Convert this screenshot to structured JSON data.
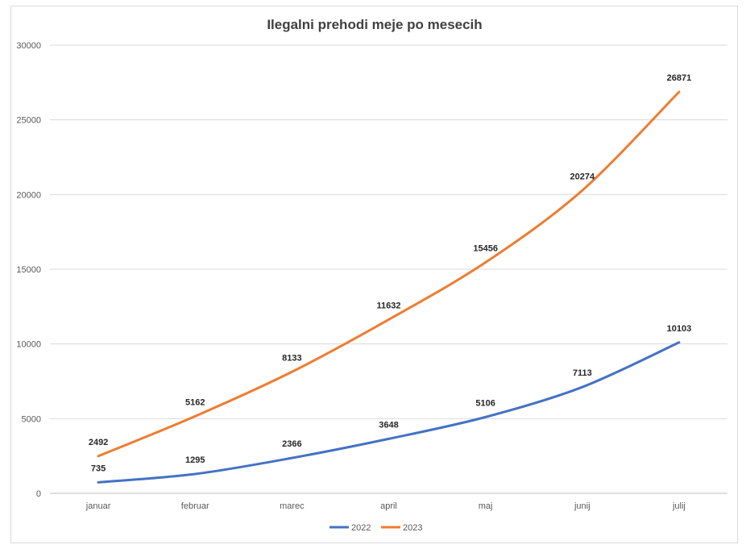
{
  "chart_data": {
    "type": "line",
    "title": "Ilegalni prehodi meje po mesecih",
    "categories": [
      "januar",
      "februar",
      "marec",
      "april",
      "maj",
      "junij",
      "julij"
    ],
    "ylim": [
      0,
      30000
    ],
    "yticks": [
      0,
      5000,
      10000,
      15000,
      20000,
      25000,
      30000
    ],
    "grid": true,
    "legend_position": "bottom",
    "series": [
      {
        "name": "2022",
        "color": "#4472C4",
        "values": [
          735,
          1295,
          2366,
          3648,
          5106,
          7113,
          10103
        ]
      },
      {
        "name": "2023",
        "color": "#ED7D31",
        "values": [
          2492,
          5162,
          8133,
          11632,
          15456,
          20274,
          26871
        ]
      }
    ]
  }
}
